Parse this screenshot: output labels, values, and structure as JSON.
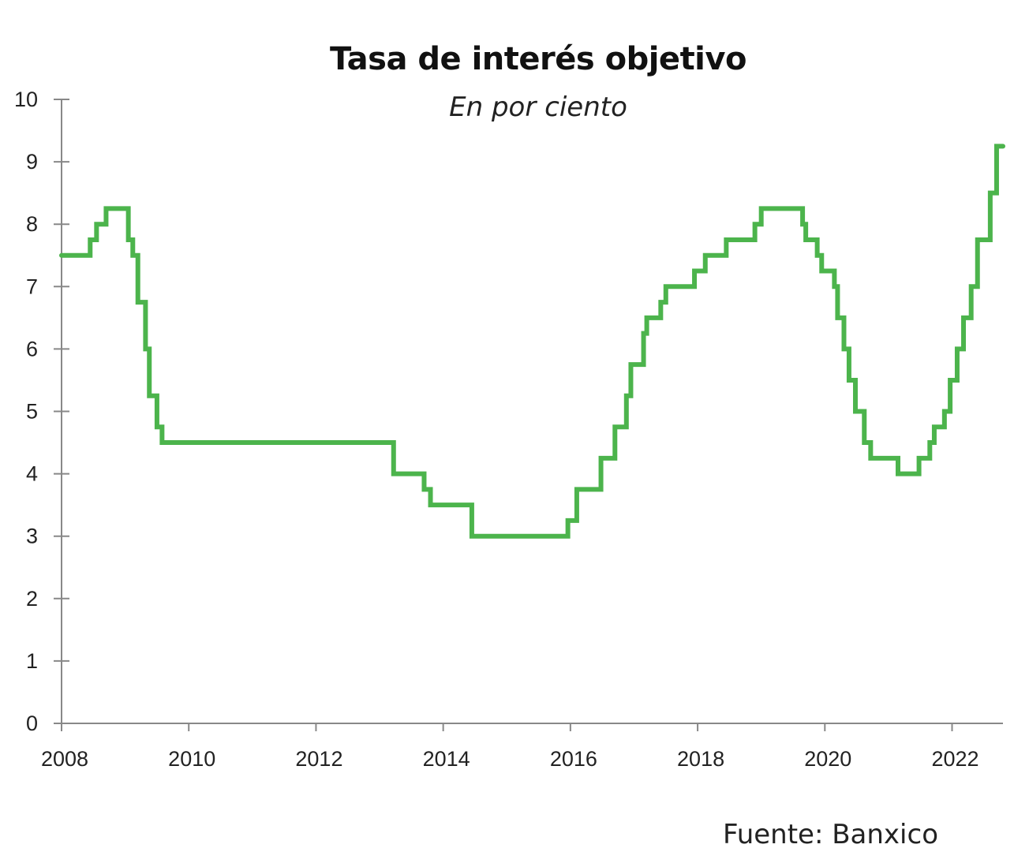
{
  "chart_data": {
    "type": "line",
    "title": "Tasa de interés objetivo",
    "subtitle": "En por ciento",
    "xlabel": "",
    "ylabel": "",
    "xlim": [
      2008,
      2022.8
    ],
    "ylim": [
      0,
      10
    ],
    "x_ticks": [
      "2008",
      "2010",
      "2012",
      "2014",
      "2016",
      "2018",
      "2020",
      "2022"
    ],
    "y_ticks": [
      "0",
      "1",
      "2",
      "3",
      "4",
      "5",
      "6",
      "7",
      "8",
      "9",
      "10"
    ],
    "grid": false,
    "legend": "none",
    "line_color": "#4cb44c",
    "series": [
      {
        "style": "step",
        "points": [
          [
            2008.0,
            7.5
          ],
          [
            2008.45,
            7.75
          ],
          [
            2008.55,
            8.0
          ],
          [
            2008.7,
            8.25
          ],
          [
            2009.05,
            7.75
          ],
          [
            2009.12,
            7.5
          ],
          [
            2009.2,
            6.75
          ],
          [
            2009.32,
            6.0
          ],
          [
            2009.38,
            5.25
          ],
          [
            2009.5,
            4.75
          ],
          [
            2009.58,
            4.5
          ],
          [
            2013.22,
            4.0
          ],
          [
            2013.7,
            3.75
          ],
          [
            2013.8,
            3.5
          ],
          [
            2014.45,
            3.0
          ],
          [
            2015.96,
            3.25
          ],
          [
            2016.1,
            3.75
          ],
          [
            2016.48,
            4.25
          ],
          [
            2016.7,
            4.75
          ],
          [
            2016.88,
            5.25
          ],
          [
            2016.95,
            5.75
          ],
          [
            2017.15,
            6.25
          ],
          [
            2017.2,
            6.5
          ],
          [
            2017.42,
            6.75
          ],
          [
            2017.5,
            7.0
          ],
          [
            2017.95,
            7.25
          ],
          [
            2018.12,
            7.5
          ],
          [
            2018.45,
            7.75
          ],
          [
            2018.9,
            8.0
          ],
          [
            2019.0,
            8.25
          ],
          [
            2019.65,
            8.0
          ],
          [
            2019.7,
            7.75
          ],
          [
            2019.88,
            7.5
          ],
          [
            2019.95,
            7.25
          ],
          [
            2020.15,
            7.0
          ],
          [
            2020.2,
            6.5
          ],
          [
            2020.3,
            6.0
          ],
          [
            2020.38,
            5.5
          ],
          [
            2020.48,
            5.0
          ],
          [
            2020.62,
            4.5
          ],
          [
            2020.72,
            4.25
          ],
          [
            2021.15,
            4.0
          ],
          [
            2021.48,
            4.25
          ],
          [
            2021.65,
            4.5
          ],
          [
            2021.72,
            4.75
          ],
          [
            2021.88,
            5.0
          ],
          [
            2021.97,
            5.5
          ],
          [
            2022.08,
            6.0
          ],
          [
            2022.18,
            6.5
          ],
          [
            2022.3,
            7.0
          ],
          [
            2022.4,
            7.75
          ],
          [
            2022.6,
            8.5
          ],
          [
            2022.7,
            9.25
          ],
          [
            2022.8,
            9.25
          ]
        ]
      }
    ]
  },
  "source_note": "Fuente: Banxico"
}
